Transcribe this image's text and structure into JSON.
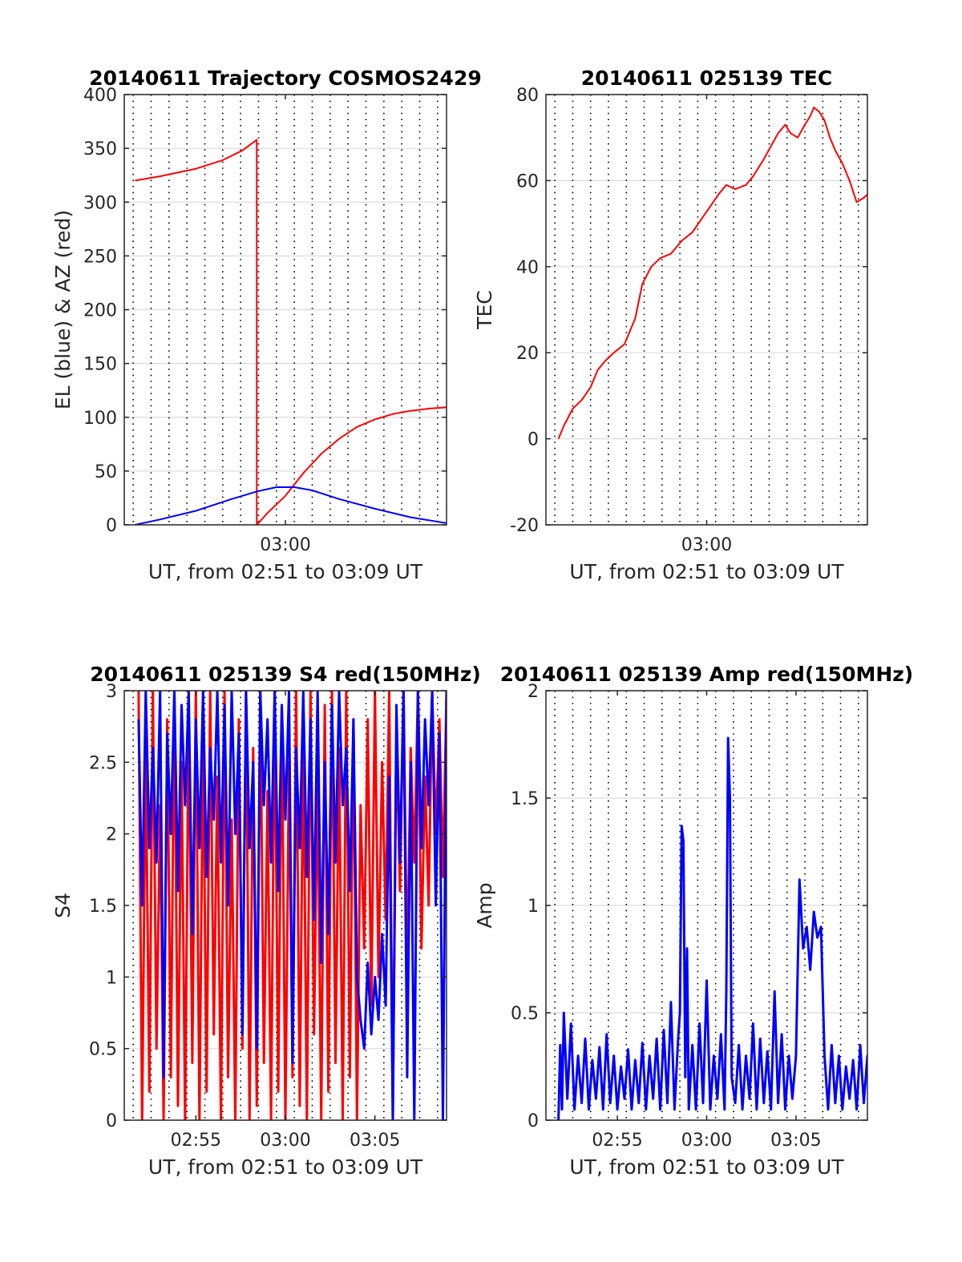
{
  "chart_data": [
    {
      "id": "trajectory",
      "type": "line",
      "title": "20140611 Trajectory COSMOS2429",
      "xlabel": "UT, from 02:51 to 03:09 UT",
      "ylabel": "EL (blue) & AZ (red)",
      "xlim": [
        0,
        18
      ],
      "ylim": [
        0,
        400
      ],
      "yticks": [
        0,
        50,
        100,
        150,
        200,
        250,
        300,
        350,
        400
      ],
      "xticks": [
        {
          "x": 9,
          "label": "03:00"
        }
      ],
      "vgrid": [
        0.5,
        1.5,
        2.5,
        3.5,
        4.5,
        5.5,
        6.5,
        7.5,
        8.5,
        9.5,
        10.5,
        11.5,
        12.5,
        13.5,
        14.5,
        15.5,
        16.5,
        17.5
      ],
      "grid": true,
      "series": [
        {
          "color": "#ff0000",
          "x": [
            0.6,
            2,
            4,
            5.5,
            6.6,
            7.4,
            7.4,
            8,
            9,
            10,
            11,
            12,
            13,
            14,
            15,
            16,
            17,
            18.6
          ],
          "y": [
            320,
            324,
            331,
            339,
            348,
            358,
            0,
            11,
            27,
            48,
            66,
            80,
            91,
            98,
            103,
            106,
            108,
            110
          ]
        },
        {
          "color": "#0000ff",
          "x": [
            0.6,
            2,
            4,
            6,
            7.4,
            8.5,
            9.5,
            10.5,
            12,
            14,
            16,
            18.6
          ],
          "y": [
            0,
            5,
            13,
            24,
            31,
            35,
            35,
            32,
            24,
            15,
            7,
            0
          ]
        }
      ]
    },
    {
      "id": "tec",
      "type": "line",
      "title": "20140611 025139 TEC",
      "xlabel": "UT, from 02:51 to 03:09 UT",
      "ylabel": "TEC",
      "xlim": [
        0,
        18
      ],
      "ylim": [
        -20,
        80
      ],
      "yticks": [
        -20,
        0,
        20,
        40,
        60,
        80
      ],
      "xticks": [
        {
          "x": 9,
          "label": "03:00"
        }
      ],
      "vgrid": [
        0.5,
        1.5,
        2.5,
        3.5,
        4.5,
        5.5,
        6.5,
        7.5,
        8.5,
        9.5,
        10.5,
        11.5,
        12.5,
        13.5,
        14.5,
        15.5,
        16.5,
        17.5
      ],
      "grid": true,
      "series": [
        {
          "color": "#ff0000",
          "x": [
            0.7,
            1,
            1.5,
            2,
            2.5,
            2.9,
            3.3,
            3.8,
            4.4,
            5,
            5.4,
            5.9,
            6.4,
            7,
            7.6,
            8.2,
            8.7,
            9.2,
            9.7,
            10.1,
            10.6,
            11.2,
            11.6,
            11.9,
            12.2,
            12.6,
            13,
            13.4,
            13.7,
            14.1,
            14.5,
            14.8,
            15,
            15.3,
            15.6,
            15.9,
            16.2,
            16.6,
            17,
            17.4,
            17.8,
            18.3,
            18.6
          ],
          "y": [
            0,
            3,
            7,
            9,
            12,
            16,
            18,
            20,
            22,
            28,
            36,
            40,
            42,
            43,
            46,
            48,
            51,
            54,
            57,
            59,
            58,
            59,
            61,
            63,
            65,
            68,
            71,
            73,
            71,
            70,
            73,
            75,
            77,
            76,
            74,
            70,
            67,
            64,
            60,
            55,
            56,
            58,
            60
          ]
        }
      ]
    },
    {
      "id": "s4",
      "type": "line",
      "title": "20140611 025139 S4 red(150MHz)",
      "xlabel": "UT, from 02:51 to 03:09 UT",
      "ylabel": "S4",
      "xlim": [
        0,
        18
      ],
      "ylim": [
        0,
        3
      ],
      "yticks": [
        0,
        0.5,
        1,
        1.5,
        2,
        2.5,
        3
      ],
      "xticks": [
        {
          "x": 4,
          "label": "02:55"
        },
        {
          "x": 9,
          "label": "03:00"
        },
        {
          "x": 14,
          "label": "03:05"
        }
      ],
      "vgrid": [
        0.5,
        1.5,
        2.5,
        3.5,
        4.5,
        5.5,
        6.5,
        7.5,
        8.5,
        9.5,
        10.5,
        11.5,
        12.5,
        13.5,
        14.5,
        15.5,
        16.5,
        17.5
      ],
      "grid": true,
      "series": [
        {
          "color": "#ff0000",
          "x": [
            0.8,
            1,
            1.2,
            1.4,
            1.6,
            1.8,
            2,
            2.2,
            2.4,
            2.6,
            2.8,
            3,
            3.2,
            3.4,
            3.6,
            3.8,
            4,
            4.2,
            4.4,
            4.6,
            4.8,
            5,
            5.2,
            5.4,
            5.6,
            5.8,
            6,
            6.2,
            6.4,
            6.6,
            6.8,
            7,
            7.2,
            7.4,
            7.6,
            7.8,
            8,
            8.2,
            8.4,
            8.6,
            8.8,
            9,
            9.2,
            9.4,
            9.6,
            9.8,
            10,
            10.2,
            10.4,
            10.6,
            10.8,
            11,
            11.2,
            11.4,
            11.6,
            11.8,
            12,
            12.2,
            12.4,
            12.6,
            12.8,
            13,
            13.2,
            13.4,
            13.6,
            13.8,
            14,
            14.2,
            14.4,
            14.6,
            14.8,
            15,
            15.2,
            15.4,
            15.6,
            15.8,
            16,
            16.2,
            16.4,
            16.6,
            16.8,
            17,
            17.2,
            17.4,
            17.6,
            17.8,
            18,
            18.2,
            18.4,
            18.6
          ],
          "y": [
            3,
            0,
            2.6,
            0.2,
            3,
            0.5,
            2.2,
            0,
            2.8,
            0.3,
            3,
            0.1,
            2.5,
            0,
            2.9,
            0.4,
            3,
            0,
            2.7,
            0.2,
            3,
            0.6,
            2.4,
            0,
            3,
            0.3,
            2.1,
            0,
            2.8,
            0.5,
            3,
            0,
            2.6,
            0.1,
            3,
            0.4,
            2.3,
            0,
            3,
            0.2,
            2.9,
            0,
            2.5,
            0.3,
            3,
            0.1,
            2.7,
            0,
            3,
            0.6,
            2.4,
            0,
            2.9,
            0.2,
            3,
            0.4,
            2.6,
            0,
            3,
            0.3,
            2.8,
            0,
            2.2,
            1.2,
            2.8,
            0.8,
            3,
            1,
            2.5,
            1.4,
            3,
            0,
            2.7,
            1.6,
            3,
            1,
            2.6,
            1.8,
            3,
            1.2,
            2.4,
            1.5,
            3,
            2,
            2.8,
            1.7,
            3,
            2.2,
            2.6,
            3
          ]
        },
        {
          "color": "#0000ff",
          "x": [
            0.8,
            1,
            1.2,
            1.4,
            1.6,
            1.8,
            2,
            2.2,
            2.4,
            2.6,
            2.8,
            3,
            3.2,
            3.4,
            3.6,
            3.8,
            4,
            4.2,
            4.4,
            4.6,
            4.8,
            5,
            5.2,
            5.4,
            5.6,
            5.8,
            6,
            6.2,
            6.4,
            6.6,
            6.8,
            7,
            7.2,
            7.4,
            7.6,
            7.8,
            8,
            8.2,
            8.4,
            8.6,
            8.8,
            9,
            9.2,
            9.4,
            9.6,
            9.8,
            10,
            10.2,
            10.4,
            10.6,
            10.8,
            11,
            11.2,
            11.4,
            11.6,
            11.8,
            12,
            12.2,
            12.4,
            12.6,
            12.8,
            13,
            13.2,
            13.4,
            13.6,
            13.8,
            14,
            14.2,
            14.4,
            14.6,
            14.8,
            15,
            15.2,
            15.4,
            15.6,
            15.8,
            16,
            16.2,
            16.4,
            16.6,
            16.8,
            17,
            17.2,
            17.4,
            17.6,
            17.8,
            18,
            18.2,
            18.4,
            18.6
          ],
          "y": [
            2.8,
            1.5,
            3,
            1.9,
            2.6,
            1.8,
            3,
            0.3,
            2.7,
            2,
            3,
            1.6,
            2.9,
            2.2,
            3,
            1.3,
            2.8,
            1.9,
            3,
            1.7,
            2.6,
            2.1,
            3,
            1.8,
            2.9,
            1.5,
            3,
            2,
            2.7,
            0.6,
            3,
            1.9,
            2.5,
            0.5,
            3,
            2.2,
            2.8,
            1.8,
            3,
            1.6,
            2.9,
            2.1,
            3,
            0.4,
            2.6,
            1.9,
            3,
            1.7,
            2.8,
            1.4,
            3,
            1.1,
            2.5,
            1.3,
            2.9,
            1.8,
            3,
            2.2,
            2.6,
            1.6,
            2.8,
            1,
            0.7,
            0.5,
            1.1,
            0.6,
            1,
            0.7,
            1.3,
            0.8,
            2.4,
            0,
            2.9,
            1.8,
            3,
            0.3,
            2.5,
            0,
            3,
            1.9,
            2.8,
            2.2,
            3,
            1.5,
            2.7,
            0,
            3,
            2.1,
            2.6,
            2.8
          ]
        }
      ]
    },
    {
      "id": "amp",
      "type": "line",
      "title": "20140611 025139 Amp red(150MHz)",
      "xlabel": "UT, from 02:51 to 03:09 UT",
      "ylabel": "Amp",
      "xlim": [
        0,
        18
      ],
      "ylim": [
        0,
        2
      ],
      "yticks": [
        0,
        0.5,
        1,
        1.5,
        2
      ],
      "xticks": [
        {
          "x": 4,
          "label": "02:55"
        },
        {
          "x": 9,
          "label": "03:00"
        },
        {
          "x": 14,
          "label": "03:05"
        }
      ],
      "vgrid": [
        0.5,
        1.5,
        2.5,
        3.5,
        4.5,
        5.5,
        6.5,
        7.5,
        8.5,
        9.5,
        10.5,
        11.5,
        12.5,
        13.5,
        14.5,
        15.5,
        16.5,
        17.5
      ],
      "grid": true,
      "series": [
        {
          "color": "#0000ff",
          "x": [
            0.7,
            0.8,
            0.9,
            1,
            1.2,
            1.4,
            1.6,
            1.8,
            2,
            2.2,
            2.4,
            2.6,
            2.8,
            3,
            3.2,
            3.4,
            3.6,
            3.8,
            4,
            4.2,
            4.4,
            4.6,
            4.8,
            5,
            5.2,
            5.4,
            5.6,
            5.8,
            6,
            6.2,
            6.4,
            6.6,
            6.8,
            7,
            7.2,
            7.4,
            7.5,
            7.6,
            7.7,
            7.8,
            7.9,
            8,
            8.2,
            8.4,
            8.6,
            8.8,
            9,
            9.2,
            9.4,
            9.6,
            9.8,
            10,
            10.1,
            10.2,
            10.3,
            10.4,
            10.6,
            10.8,
            11,
            11.2,
            11.4,
            11.6,
            11.8,
            12,
            12.2,
            12.4,
            12.6,
            12.8,
            13,
            13.2,
            13.4,
            13.6,
            13.8,
            14,
            14.2,
            14.4,
            14.6,
            14.8,
            15,
            15.2,
            15.4,
            15.6,
            15.8,
            16,
            16.2,
            16.4,
            16.6,
            16.8,
            17,
            17.2,
            17.4,
            17.6,
            17.8,
            18,
            18.2,
            18.4,
            18.6
          ],
          "y": [
            0,
            0.35,
            0.05,
            0.5,
            0.1,
            0.45,
            0.05,
            0.3,
            0.08,
            0.38,
            0.05,
            0.28,
            0.1,
            0.34,
            0.05,
            0.4,
            0.08,
            0.3,
            0.05,
            0.25,
            0.1,
            0.33,
            0.05,
            0.28,
            0.08,
            0.36,
            0.05,
            0.3,
            0.1,
            0.38,
            0.05,
            0.42,
            0.08,
            0.55,
            0.05,
            0.38,
            0.5,
            1.37,
            1.3,
            0.2,
            0.8,
            0.05,
            0.35,
            0.05,
            0.45,
            0.08,
            0.65,
            0.05,
            0.3,
            0.1,
            0.4,
            0.05,
            0.6,
            1.78,
            1.5,
            0.2,
            0.08,
            0.35,
            0.05,
            0.3,
            0.1,
            0.45,
            0.05,
            0.38,
            0.08,
            0.32,
            0.05,
            0.6,
            0.08,
            0.4,
            0.05,
            0.3,
            0.1,
            0.3,
            1.12,
            0.8,
            0.9,
            0.7,
            0.97,
            0.85,
            0.9,
            0.3,
            0.05,
            0.35,
            0.08,
            0.3,
            0.05,
            0.25,
            0.1,
            0.28,
            0.05,
            0.35,
            0.08,
            0.3,
            0.05,
            0.25,
            0.2
          ]
        }
      ]
    }
  ]
}
